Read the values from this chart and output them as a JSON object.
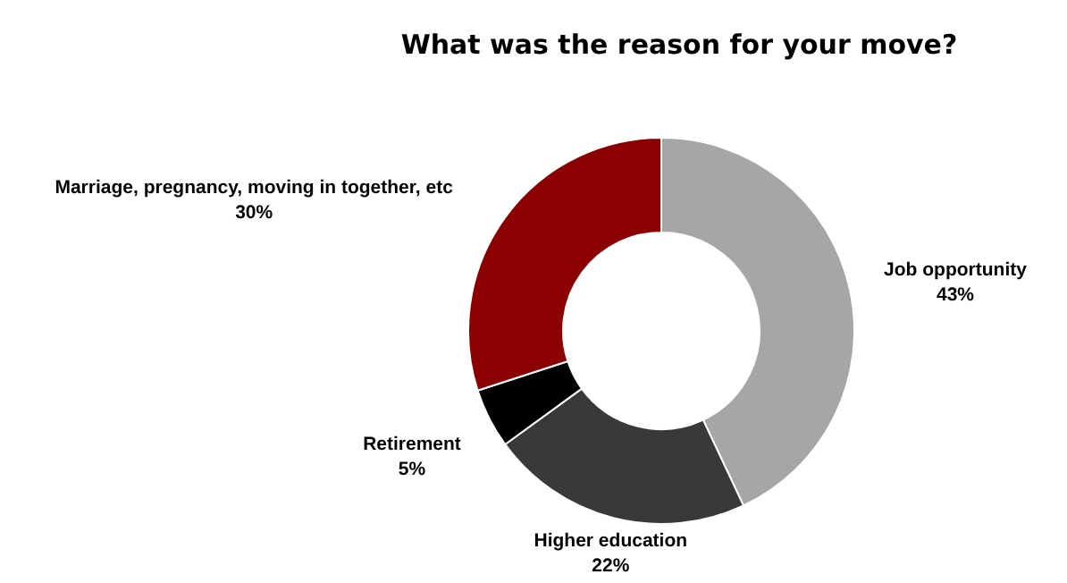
{
  "chart_data": {
    "type": "donut",
    "title": "What was the reason for your move?",
    "categories": [
      "Job opportunity",
      "Higher education",
      "Retirement",
      "Marriage, pregnancy, moving in together, etc"
    ],
    "values": [
      43,
      22,
      5,
      30
    ],
    "colors": [
      "#a6a6a6",
      "#3b3838",
      "#000000",
      "#8b0000"
    ],
    "value_labels": [
      "43%",
      "22%",
      "5%",
      "30%"
    ]
  }
}
